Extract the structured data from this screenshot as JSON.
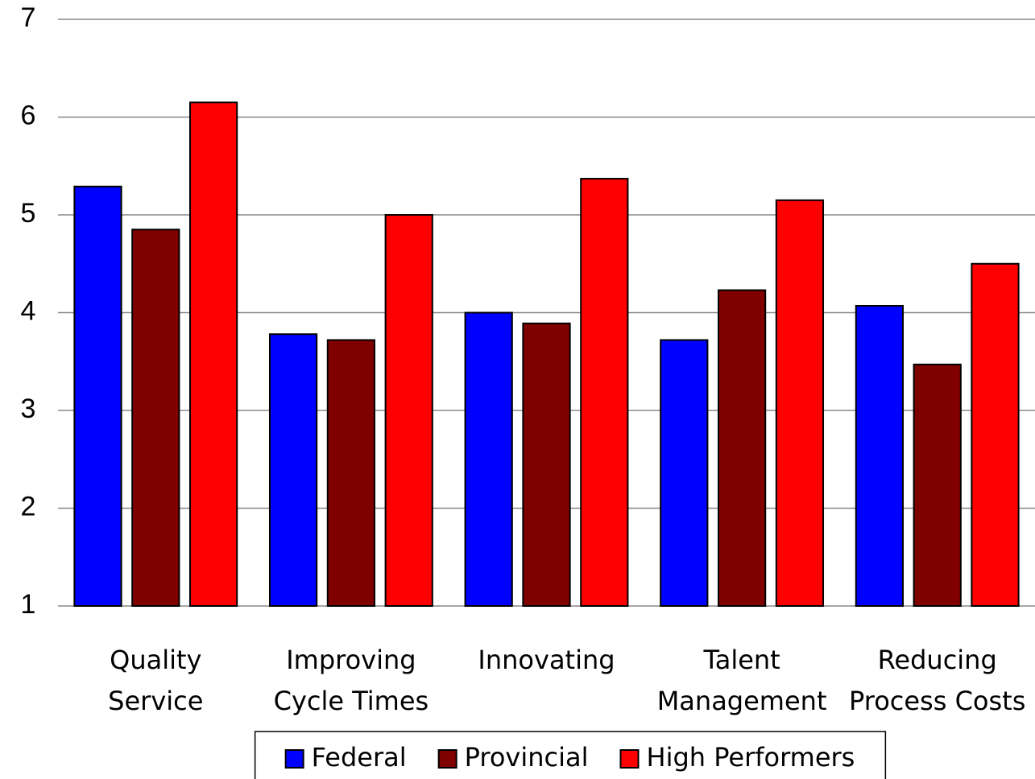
{
  "chart_data": {
    "type": "bar",
    "categories": [
      "Quality\nService",
      "Improving\nCycle Times",
      "Innovating",
      "Talent\nManagement",
      "Reducing\nProcess Costs"
    ],
    "series": [
      {
        "name": "Federal",
        "color": "#0000ff",
        "values": [
          5.29,
          3.78,
          4.0,
          3.72,
          4.07
        ]
      },
      {
        "name": "Provincial",
        "color": "#800000",
        "values": [
          4.85,
          3.72,
          3.89,
          4.23,
          3.47
        ]
      },
      {
        "name": "High Performers",
        "color": "#ff0000",
        "values": [
          6.15,
          5.0,
          5.37,
          5.15,
          4.5
        ]
      }
    ],
    "ylim": [
      1,
      7
    ],
    "yticks": [
      1,
      2,
      3,
      4,
      5,
      6,
      7
    ],
    "grid": true,
    "legend": "bottom"
  }
}
